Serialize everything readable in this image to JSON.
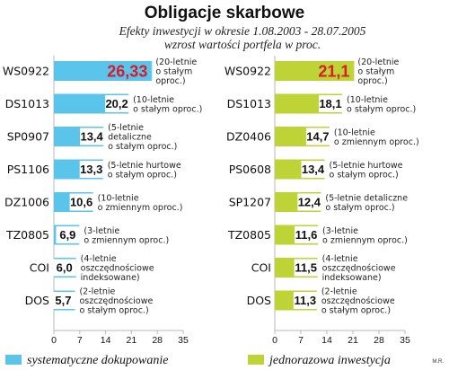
{
  "chart_data": {
    "type": "bar",
    "orientation": "horizontal",
    "title": "Obligacje skarbowe",
    "subtitle_lines": [
      "Efekty inwestycji  w okresie 1.08.2003 - 28.07.2005",
      "wzrost wartości portfela w proc."
    ],
    "xlim": [
      0,
      35
    ],
    "xticks": [
      "0",
      "7",
      "14",
      "21",
      "28",
      "35"
    ],
    "panels": [
      {
        "series_name": "systematyczne dokupowanie",
        "color": "#5bc4ea",
        "bars": [
          {
            "category": "WS0922",
            "value": 26.33,
            "label": "26,33",
            "note": [
              "(20-letnie",
              "o stałym",
              "oproc.)"
            ],
            "highlight": true
          },
          {
            "category": "DS1013",
            "value": 20.2,
            "label": "20,2",
            "note": [
              "(10-letnie",
              "o stałym oproc.)"
            ],
            "highlight": false
          },
          {
            "category": "SP0907",
            "value": 13.4,
            "label": "13,4",
            "note": [
              "(5-letnie",
              "detaliczne",
              "o stałym oproc.)"
            ],
            "highlight": false
          },
          {
            "category": "PS1106",
            "value": 13.3,
            "label": "13,3",
            "note": [
              "(5-letnie hurtowe",
              "o stałym oproc.)"
            ],
            "highlight": false
          },
          {
            "category": "DZ1006",
            "value": 10.6,
            "label": "10,6",
            "note": [
              "(10-letnie",
              "o zmiennym oproc.)"
            ],
            "highlight": false
          },
          {
            "category": "TZ0805",
            "value": 6.9,
            "label": "6,9",
            "note": [
              "(3-letnie",
              "o zmiennym oproc.)"
            ],
            "highlight": false
          },
          {
            "category": "COI",
            "value": 6.0,
            "label": "6,0",
            "note": [
              "(4-letnie",
              "oszczędnościowe",
              "indeksowane)"
            ],
            "highlight": false
          },
          {
            "category": "DOS",
            "value": 5.7,
            "label": "5,7",
            "note": [
              "(2-letnie",
              "oszczędnościowe",
              "o stałym oproc.)"
            ],
            "highlight": false
          }
        ]
      },
      {
        "series_name": "jednorazowa inwestycja",
        "color": "#bdd336",
        "bars": [
          {
            "category": "WS0922",
            "value": 21.1,
            "label": "21,1",
            "note": [
              "(20-letnie",
              "o stałym",
              "oproc.)"
            ],
            "highlight": true
          },
          {
            "category": "DS1013",
            "value": 18.1,
            "label": "18,1",
            "note": [
              "(10-letnie",
              "o stałym oproc.)"
            ],
            "highlight": false
          },
          {
            "category": "DZ0406",
            "value": 14.7,
            "label": "14,7",
            "note": [
              "(10-letnie",
              "o zmiennym oproc.)"
            ],
            "highlight": false
          },
          {
            "category": "PS0608",
            "value": 13.4,
            "label": "13,4",
            "note": [
              "(5-letnie hurtowe",
              "o stałym oproc.)"
            ],
            "highlight": false
          },
          {
            "category": "SP1207",
            "value": 12.4,
            "label": "12,4",
            "note": [
              "(5-letnie detaliczne",
              "o stałym oproc.)"
            ],
            "highlight": false
          },
          {
            "category": "TZ0805",
            "value": 11.6,
            "label": "11,6",
            "note": [
              "(3-letnie",
              "o zmiennym oproc.)"
            ],
            "highlight": false
          },
          {
            "category": "COI",
            "value": 11.5,
            "label": "11,5",
            "note": [
              "(4-letnie",
              "oszczędnościowe",
              "indeksowane)"
            ],
            "highlight": false
          },
          {
            "category": "DOS",
            "value": 11.3,
            "label": "11,3",
            "note": [
              "(2-letnie",
              "oszczędnościowe",
              "o stałym oproc.)"
            ],
            "highlight": false
          }
        ]
      }
    ],
    "legend": [
      {
        "label": "systematyczne dokupowanie",
        "color": "#5bc4ea"
      },
      {
        "label": "jednorazowa inwestycja",
        "color": "#bdd336"
      }
    ],
    "legend_position": "bottom",
    "credit": "M.R.",
    "axis_color": "#b8b8b8",
    "highlight_value_color": "#d81b2a"
  }
}
